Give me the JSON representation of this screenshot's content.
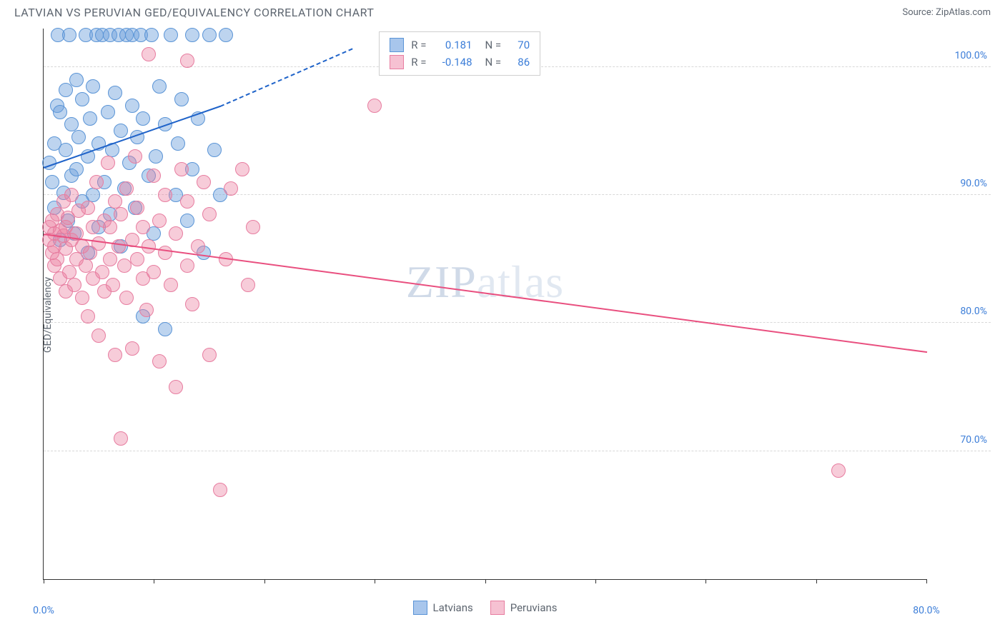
{
  "header": {
    "title": "LATVIAN VS PERUVIAN GED/EQUIVALENCY CORRELATION CHART",
    "source_prefix": "Source: ",
    "source_name": "ZipAtlas.com"
  },
  "chart": {
    "type": "scatter",
    "ylabel": "GED/Equivalency",
    "watermark_a": "ZIP",
    "watermark_b": "atlas",
    "background_color": "#ffffff",
    "grid_color": "#d8d8d8",
    "axis_color": "#333333",
    "label_color": "#5e6670",
    "value_color": "#3b7dd8",
    "xlim": [
      0,
      80
    ],
    "ylim": [
      60,
      103
    ],
    "xticks": [
      0,
      10,
      20,
      30,
      40,
      50,
      60,
      70,
      80
    ],
    "xtick_labels": {
      "0": "0.0%",
      "80": "80.0%"
    },
    "yticks": [
      70,
      80,
      90,
      100
    ],
    "ytick_labels": {
      "70": "70.0%",
      "80": "80.0%",
      "90": "90.0%",
      "100": "100.0%"
    },
    "marker_radius": 10,
    "marker_opacity": 0.45,
    "line_width": 2.5,
    "series": [
      {
        "name": "Latvians",
        "color_fill": "rgba(108,160,220,0.45)",
        "color_stroke": "#5a94d6",
        "line_color": "#1f63c9",
        "swatch_fill": "#a8c6ec",
        "swatch_border": "#5a94d6",
        "R": "0.181",
        "N": "70",
        "regression": {
          "x1": 0,
          "y1": 92.2,
          "x2": 16,
          "y2": 97.0,
          "dash_from_x": 16,
          "dash_to_x": 28,
          "dash_to_y": 101.5
        },
        "points": [
          [
            0.5,
            92.5
          ],
          [
            0.8,
            91.0
          ],
          [
            1.0,
            94.0
          ],
          [
            1.0,
            89.0
          ],
          [
            1.2,
            97.0
          ],
          [
            1.3,
            102.5
          ],
          [
            1.5,
            86.5
          ],
          [
            1.5,
            96.5
          ],
          [
            1.8,
            90.2
          ],
          [
            2.0,
            93.5
          ],
          [
            2.0,
            98.2
          ],
          [
            2.2,
            88.0
          ],
          [
            2.3,
            102.5
          ],
          [
            2.5,
            95.5
          ],
          [
            2.5,
            91.5
          ],
          [
            2.8,
            87.0
          ],
          [
            3.0,
            99.0
          ],
          [
            3.0,
            92.0
          ],
          [
            3.2,
            94.5
          ],
          [
            3.5,
            89.5
          ],
          [
            3.5,
            97.5
          ],
          [
            3.8,
            102.5
          ],
          [
            4.0,
            85.5
          ],
          [
            4.0,
            93.0
          ],
          [
            4.2,
            96.0
          ],
          [
            4.5,
            90.0
          ],
          [
            4.5,
            98.5
          ],
          [
            4.8,
            102.5
          ],
          [
            5.0,
            87.5
          ],
          [
            5.0,
            94.0
          ],
          [
            5.3,
            102.5
          ],
          [
            5.5,
            91.0
          ],
          [
            5.8,
            96.5
          ],
          [
            6.0,
            102.5
          ],
          [
            6.0,
            88.5
          ],
          [
            6.2,
            93.5
          ],
          [
            6.5,
            98.0
          ],
          [
            6.8,
            102.5
          ],
          [
            7.0,
            86.0
          ],
          [
            7.0,
            95.0
          ],
          [
            7.3,
            90.5
          ],
          [
            7.5,
            102.5
          ],
          [
            7.8,
            92.5
          ],
          [
            8.0,
            97.0
          ],
          [
            8.0,
            102.5
          ],
          [
            8.3,
            89.0
          ],
          [
            8.5,
            94.5
          ],
          [
            8.8,
            102.5
          ],
          [
            9.0,
            80.5
          ],
          [
            9.0,
            96.0
          ],
          [
            9.5,
            91.5
          ],
          [
            9.8,
            102.5
          ],
          [
            10.0,
            87.0
          ],
          [
            10.2,
            93.0
          ],
          [
            10.5,
            98.5
          ],
          [
            11.0,
            79.5
          ],
          [
            11.0,
            95.5
          ],
          [
            11.5,
            102.5
          ],
          [
            12.0,
            90.0
          ],
          [
            12.2,
            94.0
          ],
          [
            12.5,
            97.5
          ],
          [
            13.0,
            88.0
          ],
          [
            13.5,
            102.5
          ],
          [
            13.5,
            92.0
          ],
          [
            14.0,
            96.0
          ],
          [
            14.5,
            85.5
          ],
          [
            15.0,
            102.5
          ],
          [
            15.5,
            93.5
          ],
          [
            16.0,
            90.0
          ],
          [
            16.5,
            102.5
          ]
        ]
      },
      {
        "name": "Peruvians",
        "color_fill": "rgba(236,128,161,0.40)",
        "color_stroke": "#e77da0",
        "line_color": "#e94f7f",
        "swatch_fill": "#f6c1d2",
        "swatch_border": "#e77da0",
        "R": "-0.148",
        "N": "86",
        "regression": {
          "x1": 0,
          "y1": 87.0,
          "x2": 80,
          "y2": 77.8
        },
        "points": [
          [
            0.5,
            86.5
          ],
          [
            0.5,
            87.5
          ],
          [
            0.8,
            85.5
          ],
          [
            0.8,
            88.0
          ],
          [
            1.0,
            86.0
          ],
          [
            1.0,
            87.0
          ],
          [
            1.0,
            84.5
          ],
          [
            1.2,
            88.5
          ],
          [
            1.2,
            85.0
          ],
          [
            1.5,
            87.2
          ],
          [
            1.5,
            83.5
          ],
          [
            1.8,
            86.8
          ],
          [
            1.8,
            89.5
          ],
          [
            2.0,
            85.8
          ],
          [
            2.0,
            87.5
          ],
          [
            2.0,
            82.5
          ],
          [
            2.2,
            88.2
          ],
          [
            2.3,
            84.0
          ],
          [
            2.5,
            86.5
          ],
          [
            2.5,
            90.0
          ],
          [
            2.8,
            83.0
          ],
          [
            3.0,
            87.0
          ],
          [
            3.0,
            85.0
          ],
          [
            3.2,
            88.8
          ],
          [
            3.5,
            82.0
          ],
          [
            3.5,
            86.0
          ],
          [
            3.8,
            84.5
          ],
          [
            4.0,
            89.0
          ],
          [
            4.0,
            80.5
          ],
          [
            4.2,
            85.5
          ],
          [
            4.5,
            87.5
          ],
          [
            4.5,
            83.5
          ],
          [
            4.8,
            91.0
          ],
          [
            5.0,
            86.2
          ],
          [
            5.0,
            79.0
          ],
          [
            5.3,
            84.0
          ],
          [
            5.5,
            88.0
          ],
          [
            5.5,
            82.5
          ],
          [
            5.8,
            92.5
          ],
          [
            6.0,
            85.0
          ],
          [
            6.0,
            87.5
          ],
          [
            6.3,
            83.0
          ],
          [
            6.5,
            89.5
          ],
          [
            6.5,
            77.5
          ],
          [
            6.8,
            86.0
          ],
          [
            7.0,
            71.0
          ],
          [
            7.0,
            88.5
          ],
          [
            7.3,
            84.5
          ],
          [
            7.5,
            90.5
          ],
          [
            7.5,
            82.0
          ],
          [
            8.0,
            86.5
          ],
          [
            8.0,
            78.0
          ],
          [
            8.3,
            93.0
          ],
          [
            8.5,
            85.0
          ],
          [
            8.5,
            89.0
          ],
          [
            9.0,
            83.5
          ],
          [
            9.0,
            87.5
          ],
          [
            9.3,
            81.0
          ],
          [
            9.5,
            101.0
          ],
          [
            9.5,
            86.0
          ],
          [
            10.0,
            91.5
          ],
          [
            10.0,
            84.0
          ],
          [
            10.5,
            88.0
          ],
          [
            10.5,
            77.0
          ],
          [
            11.0,
            85.5
          ],
          [
            11.0,
            90.0
          ],
          [
            11.5,
            83.0
          ],
          [
            12.0,
            75.0
          ],
          [
            12.0,
            87.0
          ],
          [
            12.5,
            92.0
          ],
          [
            13.0,
            84.5
          ],
          [
            13.0,
            89.5
          ],
          [
            13.5,
            81.5
          ],
          [
            14.0,
            86.0
          ],
          [
            14.5,
            91.0
          ],
          [
            15.0,
            77.5
          ],
          [
            15.0,
            88.5
          ],
          [
            16.0,
            67.0
          ],
          [
            16.5,
            85.0
          ],
          [
            17.0,
            90.5
          ],
          [
            18.0,
            92.0
          ],
          [
            18.5,
            83.0
          ],
          [
            19.0,
            87.5
          ],
          [
            30.0,
            97.0
          ],
          [
            72.0,
            68.5
          ],
          [
            13.0,
            100.5
          ]
        ]
      }
    ],
    "legend_bottom": [
      "Latvians",
      "Peruvians"
    ]
  }
}
